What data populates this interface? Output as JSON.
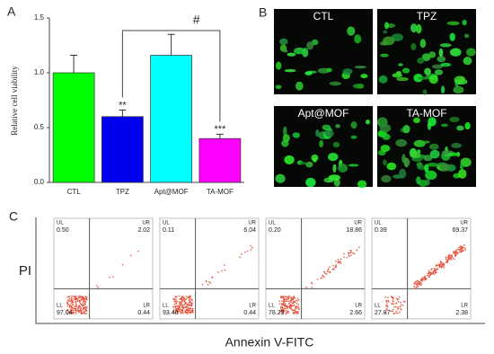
{
  "chart_data": {
    "type": "bar",
    "panel_label": "A",
    "y_label": "Relative cell viability",
    "categories": [
      "CTL",
      "TPZ",
      "Apt@MOF",
      "TA-MOF"
    ],
    "values": [
      1.0,
      0.6,
      1.16,
      0.4
    ],
    "errors": [
      0.16,
      0.06,
      0.19,
      0.04
    ],
    "colors": [
      "#00ff00",
      "#0000ee",
      "#00ffff",
      "#ff00ff"
    ],
    "significance": [
      null,
      "**",
      null,
      "***"
    ],
    "comparison_label": "#",
    "ylim": [
      0,
      1.5
    ],
    "yticks": [
      {
        "value": 0,
        "label": "0.0"
      },
      0.5,
      {
        "value": 1,
        "label": "1.0"
      },
      1.5
    ]
  },
  "images": {
    "panel_label": "B",
    "labels": [
      "CTL",
      "TPZ",
      "Apt@MOF",
      "TA-MOF"
    ]
  },
  "flow_cytometry": {
    "panel_label": "C",
    "y_label": "PI",
    "x_label": "Annexin V-FITC",
    "quadrant_names": [
      "UL",
      "UR",
      "LL",
      "LR"
    ],
    "plots": [
      [
        "0.50",
        "2.02",
        "97.04",
        "0.44"
      ],
      [
        "0.11",
        "6.04",
        "93.40",
        "0.44"
      ],
      [
        "0.20",
        "18.86",
        "78.29",
        "2.66"
      ],
      [
        "0.39",
        "69.37",
        "27.87",
        "2.38"
      ]
    ]
  }
}
